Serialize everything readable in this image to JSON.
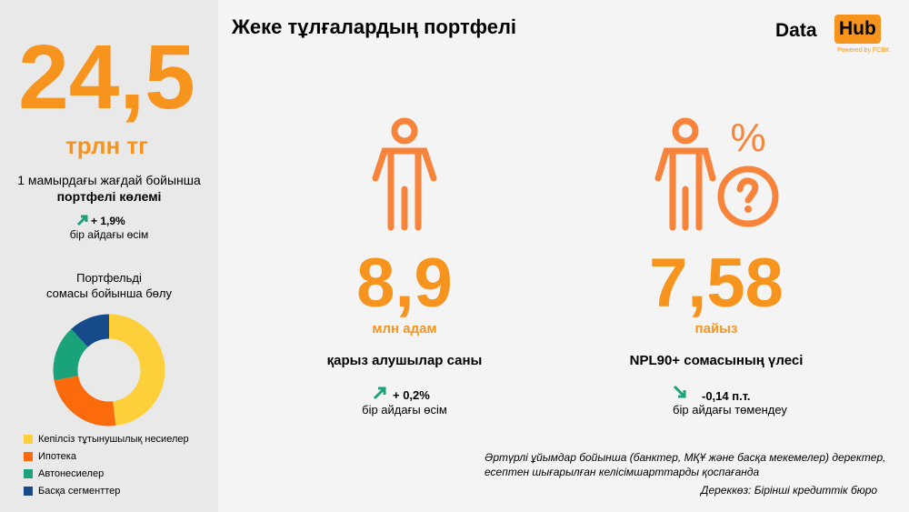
{
  "header": {
    "title": "Жеке тұлғалардың портфелі",
    "logo_left": "Data",
    "logo_right": "Hub",
    "logo_sub": "Powered by FCBK"
  },
  "left": {
    "big_number": "24,5",
    "unit": "трлн тг",
    "caption_line1": "1 мамырдағы жағдай бойынша",
    "caption_line2": "портфелі көлемі",
    "change": "+ 1,9%",
    "change_caption": "бір айдағы өсім",
    "donut_title_line1": "Портфельді",
    "donut_title_line2": "сомасы бойынша бөлу"
  },
  "chart_data": {
    "type": "pie",
    "series": [
      {
        "name": "Кепілсіз тұтынушылық несиелер",
        "color": "#fdd03b",
        "value": 48
      },
      {
        "name": "Ипотека",
        "color": "#fb6a0b",
        "value": 24
      },
      {
        "name": "Автонесиелер",
        "color": "#1aa37a",
        "value": 16
      },
      {
        "name": "Басқа сегменттер",
        "color": "#174a8b",
        "value": 12
      }
    ]
  },
  "metrics": [
    {
      "value": "8,9",
      "unit": "млн адам",
      "label": "қарыз алушылар саны",
      "change": "+ 0,2%",
      "change_caption": "бір айдағы өсім"
    },
    {
      "value": "7,58",
      "unit": "пайыз",
      "label": "NPL90+ сомасының үлесі",
      "change": "-0,14 п.т.",
      "change_caption": "бір айдағы төмендеу"
    }
  ],
  "footnote_line1": "Әртүрлі ұйымдар бойынша (банктер, МҚҰ және басқа мекемелер) деректер,",
  "footnote_line2": "есептен шығарылған келісімшарттарды қоспағанда",
  "source": "Дереккөз: Бірінші кредиттік бюро"
}
